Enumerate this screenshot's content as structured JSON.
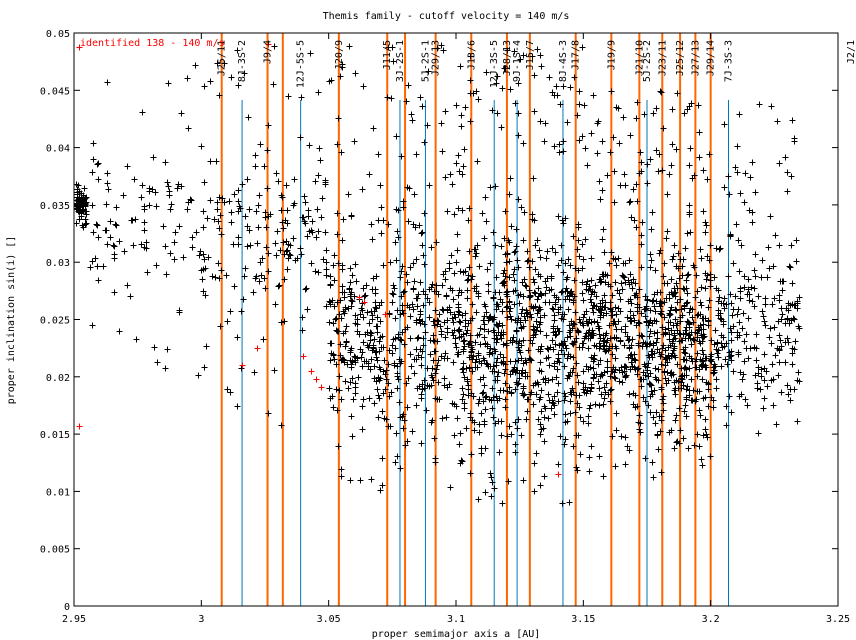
{
  "chart_data": {
    "type": "scatter",
    "title": "Themis family - cutoff velocity = 140 m/s",
    "xlabel": "proper semimajor axis a [AU]",
    "ylabel": "proper inclination sin(i) []",
    "xlim": [
      2.95,
      3.25
    ],
    "ylim": [
      0,
      0.05
    ],
    "x_ticks": [
      "2.95",
      "3",
      "3.05",
      "3.1",
      "3.15",
      "3.2",
      "3.25"
    ],
    "x_tick_values": [
      2.95,
      3.0,
      3.05,
      3.1,
      3.15,
      3.2,
      3.25
    ],
    "y_ticks": [
      "0",
      "0.005",
      "0.01",
      "0.015",
      "0.02",
      "0.025",
      "0.03",
      "0.035",
      "0.04",
      "0.045",
      "0.05"
    ],
    "y_tick_values": [
      0,
      0.005,
      0.01,
      0.015,
      0.02,
      0.025,
      0.03,
      0.035,
      0.04,
      0.045,
      0.05
    ],
    "legend": "identified 138 - 140 m/s",
    "legend_placement": "top-left",
    "colors": {
      "members": "#000000",
      "identified": "#ff0000",
      "mean_motion_resonance": "#ff6600",
      "three_body_resonance": "#0077bb"
    },
    "resonances": [
      {
        "label": "J25/11",
        "a": 3.008,
        "kind": "mmr"
      },
      {
        "label": "8J-3S-2",
        "a": 3.016,
        "kind": "three_body"
      },
      {
        "label": "J9/4",
        "a": 3.026,
        "kind": "mmr"
      },
      {
        "label": "",
        "a": 3.032,
        "kind": "mmr"
      },
      {
        "label": "12J-5S-5",
        "a": 3.039,
        "kind": "three_body"
      },
      {
        "label": "J20/9",
        "a": 3.054,
        "kind": "mmr"
      },
      {
        "label": "J11/5",
        "a": 3.073,
        "kind": "mmr"
      },
      {
        "label": "3J-2S-1",
        "a": 3.078,
        "kind": "three_body"
      },
      {
        "label": "",
        "a": 3.08,
        "kind": "mmr"
      },
      {
        "label": "5J-2S-1",
        "a": 3.088,
        "kind": "three_body"
      },
      {
        "label": "J29/13",
        "a": 3.092,
        "kind": "mmr"
      },
      {
        "label": "J13/6",
        "a": 3.106,
        "kind": "mmr"
      },
      {
        "label": "12J-3S-5",
        "a": 3.115,
        "kind": "three_body"
      },
      {
        "label": "J28/13",
        "a": 3.12,
        "kind": "mmr"
      },
      {
        "label": "9J-1S-4",
        "a": 3.124,
        "kind": "three_body"
      },
      {
        "label": "J15/7",
        "a": 3.129,
        "kind": "mmr"
      },
      {
        "label": "8J-4S-3",
        "a": 3.142,
        "kind": "three_body"
      },
      {
        "label": "J17/8",
        "a": 3.147,
        "kind": "mmr"
      },
      {
        "label": "J19/9",
        "a": 3.161,
        "kind": "mmr"
      },
      {
        "label": "J21/10",
        "a": 3.172,
        "kind": "mmr"
      },
      {
        "label": "5J-2S-2",
        "a": 3.175,
        "kind": "three_body"
      },
      {
        "label": "J23/11",
        "a": 3.181,
        "kind": "mmr"
      },
      {
        "label": "J25/12",
        "a": 3.188,
        "kind": "mmr"
      },
      {
        "label": "J27/13",
        "a": 3.194,
        "kind": "mmr"
      },
      {
        "label": "J29/14",
        "a": 3.2,
        "kind": "mmr"
      },
      {
        "label": "7J-3S-3",
        "a": 3.207,
        "kind": "three_body"
      },
      {
        "label": "J2/1",
        "a": 3.278,
        "kind": "mmr"
      }
    ],
    "identified_points": [
      [
        2.952,
        0.0157
      ],
      [
        2.952,
        0.0488
      ],
      [
        3.016,
        0.021
      ],
      [
        3.026,
        0.049
      ],
      [
        3.04,
        0.0218
      ],
      [
        3.043,
        0.0205
      ],
      [
        3.045,
        0.0198
      ],
      [
        3.047,
        0.0191
      ],
      [
        3.062,
        0.027
      ],
      [
        3.072,
        0.0255
      ],
      [
        3.14,
        0.0115
      ],
      [
        3.022,
        0.0225
      ],
      [
        3.064,
        0.0265
      ]
    ],
    "clusters": [
      {
        "x_range": [
          2.95,
          2.955
        ],
        "y_range": [
          0.033,
          0.037
        ],
        "count": 90
      },
      {
        "x_range": [
          2.955,
          3.0
        ],
        "y_range": [
          0.02,
          0.048
        ],
        "count": 110
      },
      {
        "x_range": [
          3.0,
          3.05
        ],
        "y_range": [
          0.015,
          0.049
        ],
        "count": 200
      },
      {
        "x_range": [
          3.05,
          3.1
        ],
        "y_range": [
          0.01,
          0.049
        ],
        "count": 520
      },
      {
        "x_range": [
          3.1,
          3.15
        ],
        "y_range": [
          0.009,
          0.049
        ],
        "count": 780
      },
      {
        "x_range": [
          3.15,
          3.2
        ],
        "y_range": [
          0.011,
          0.045
        ],
        "count": 820
      },
      {
        "x_range": [
          3.2,
          3.235
        ],
        "y_range": [
          0.015,
          0.044
        ],
        "count": 260
      }
    ]
  }
}
